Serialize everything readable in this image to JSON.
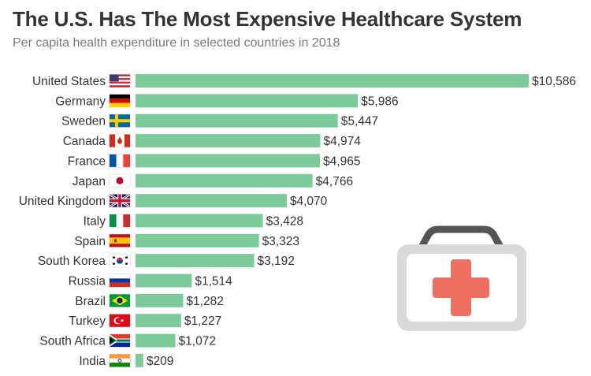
{
  "header": {
    "title": "The U.S. Has The Most Expensive Healthcare System",
    "subtitle": "Per capita health expenditure in selected countries in 2018"
  },
  "colors": {
    "bar": "#7dcb9b",
    "title": "#333333",
    "subtitle": "#7a7a7a",
    "label": "#333333"
  },
  "chart_data": {
    "type": "bar",
    "orientation": "horizontal",
    "title": "The U.S. Has The Most Expensive Healthcare System",
    "subtitle": "Per capita health expenditure in selected countries in 2018",
    "value_prefix": "$",
    "categories": [
      "United States",
      "Germany",
      "Sweden",
      "Canada",
      "France",
      "Japan",
      "United Kingdom",
      "Italy",
      "Spain",
      "South Korea",
      "Russia",
      "Brazil",
      "Turkey",
      "South Africa",
      "India"
    ],
    "values": [
      10586,
      5986,
      5447,
      4974,
      4965,
      4766,
      4070,
      3428,
      3323,
      3192,
      1514,
      1282,
      1227,
      1072,
      209
    ],
    "value_labels": [
      "$10,586",
      "$5,986",
      "$5,447",
      "$4,974",
      "$4,965",
      "$4,766",
      "$4,070",
      "$3,428",
      "$3,323",
      "$3,192",
      "$1,514",
      "$1,282",
      "$1,227",
      "$1,072",
      "$209"
    ],
    "flags": [
      "us-flag",
      "de-flag",
      "se-flag",
      "ca-flag",
      "fr-flag",
      "jp-flag",
      "gb-flag",
      "it-flag",
      "es-flag",
      "kr-flag",
      "ru-flag",
      "br-flag",
      "tr-flag",
      "za-flag",
      "in-flag"
    ],
    "xlim": [
      0,
      10586
    ],
    "grid": false,
    "legend": "none"
  },
  "illustration": {
    "icon": "first-aid-kit-icon"
  }
}
